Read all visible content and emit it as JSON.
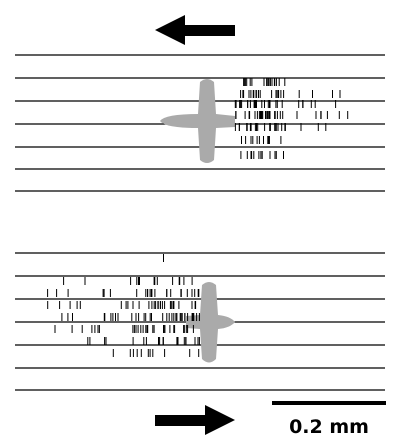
{
  "scale_bar": {
    "label": "0.2 mm"
  }
}
